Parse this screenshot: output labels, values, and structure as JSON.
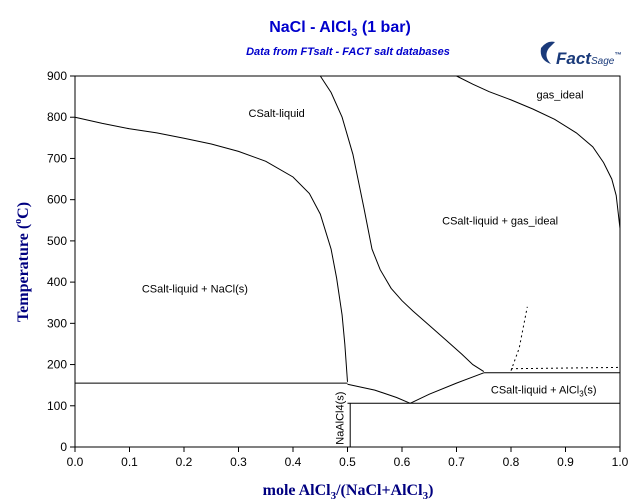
{
  "header": {
    "title_main": "NaCl - AlCl",
    "title_sub": "3",
    "title_tail": " (1 bar)",
    "subtitle": "Data from FTsalt - FACT salt databases"
  },
  "logo": {
    "text_main": "Fact",
    "text_tail": "Sage",
    "mark": "™",
    "color": "#1a3a7a"
  },
  "axes": {
    "x_label_main": "mole AlCl",
    "x_label_sub1": "3",
    "x_label_mid": "/(NaCl+AlCl",
    "x_label_sub2": "3",
    "x_label_tail": ")",
    "y_label_main": "Temperature (",
    "y_label_deg": "o",
    "y_label_tail": "C)",
    "x_ticks": [
      "0.0",
      "0.1",
      "0.2",
      "0.3",
      "0.4",
      "0.5",
      "0.6",
      "0.7",
      "0.8",
      "0.9",
      "1.0"
    ],
    "y_ticks": [
      "0",
      "100",
      "200",
      "300",
      "400",
      "500",
      "600",
      "700",
      "800",
      "900"
    ]
  },
  "chart_data": {
    "type": "line",
    "xlim": [
      0,
      1
    ],
    "ylim": [
      0,
      900
    ],
    "regions": [
      {
        "label": "CSalt-liquid",
        "x": 0.37,
        "y": 800
      },
      {
        "label": "gas_ideal",
        "x": 0.89,
        "y": 845
      },
      {
        "label": "CSalt-liquid + gas_ideal",
        "x": 0.78,
        "y": 540
      },
      {
        "label": "CSalt-liquid + NaCl(s)",
        "x": 0.22,
        "y": 375
      }
    ],
    "region_alcl3": {
      "label_main": "CSalt-liquid + AlCl",
      "label_sub": "3",
      "label_tail": "(s)",
      "x": 0.86,
      "y": 130
    },
    "compound": {
      "label": "NaAlCl4(s)",
      "x": 0.5,
      "y": 70
    },
    "series": [
      {
        "points": [
          [
            0.0,
            800
          ],
          [
            0.05,
            785
          ],
          [
            0.1,
            772
          ],
          [
            0.15,
            762
          ],
          [
            0.2,
            749
          ],
          [
            0.25,
            735
          ],
          [
            0.3,
            717
          ],
          [
            0.35,
            693
          ],
          [
            0.4,
            655
          ],
          [
            0.43,
            615
          ],
          [
            0.45,
            565
          ],
          [
            0.47,
            480
          ],
          [
            0.48,
            410
          ],
          [
            0.49,
            320
          ],
          [
            0.495,
            250
          ],
          [
            0.5,
            158
          ]
        ]
      },
      {
        "points": [
          [
            0.45,
            900
          ],
          [
            0.47,
            860
          ],
          [
            0.49,
            800
          ],
          [
            0.51,
            710
          ],
          [
            0.53,
            580
          ],
          [
            0.545,
            480
          ],
          [
            0.56,
            430
          ],
          [
            0.58,
            385
          ],
          [
            0.6,
            355
          ],
          [
            0.62,
            330
          ],
          [
            0.65,
            295
          ],
          [
            0.68,
            260
          ],
          [
            0.71,
            225
          ],
          [
            0.73,
            200
          ],
          [
            0.75,
            183
          ]
        ]
      },
      {
        "points": [
          [
            0.7,
            900
          ],
          [
            0.73,
            880
          ],
          [
            0.76,
            862
          ],
          [
            0.8,
            842
          ],
          [
            0.84,
            820
          ],
          [
            0.88,
            795
          ],
          [
            0.92,
            762
          ],
          [
            0.95,
            728
          ],
          [
            0.97,
            690
          ],
          [
            0.985,
            650
          ],
          [
            0.993,
            610
          ],
          [
            1.0,
            530
          ]
        ]
      },
      {
        "points": [
          [
            0.5,
            152
          ],
          [
            0.55,
            138
          ],
          [
            0.59,
            120
          ],
          [
            0.615,
            106
          ]
        ]
      },
      {
        "points": [
          [
            0.615,
            106
          ],
          [
            0.65,
            128
          ],
          [
            0.7,
            155
          ],
          [
            0.75,
            180
          ]
        ]
      },
      {
        "points": [
          [
            0.0,
            155
          ],
          [
            0.5,
            155
          ]
        ]
      },
      {
        "points": [
          [
            0.5,
            106
          ],
          [
            1.0,
            106
          ]
        ]
      },
      {
        "points": [
          [
            0.505,
            0
          ],
          [
            0.505,
            106
          ]
        ]
      },
      {
        "points": [
          [
            0.75,
            180
          ],
          [
            1.0,
            180
          ]
        ]
      }
    ],
    "dotted_series": [
      {
        "points": [
          [
            0.8,
            185
          ],
          [
            0.815,
            240
          ],
          [
            0.83,
            340
          ]
        ]
      },
      {
        "points": [
          [
            0.8,
            190
          ],
          [
            1.0,
            193
          ]
        ]
      }
    ]
  }
}
